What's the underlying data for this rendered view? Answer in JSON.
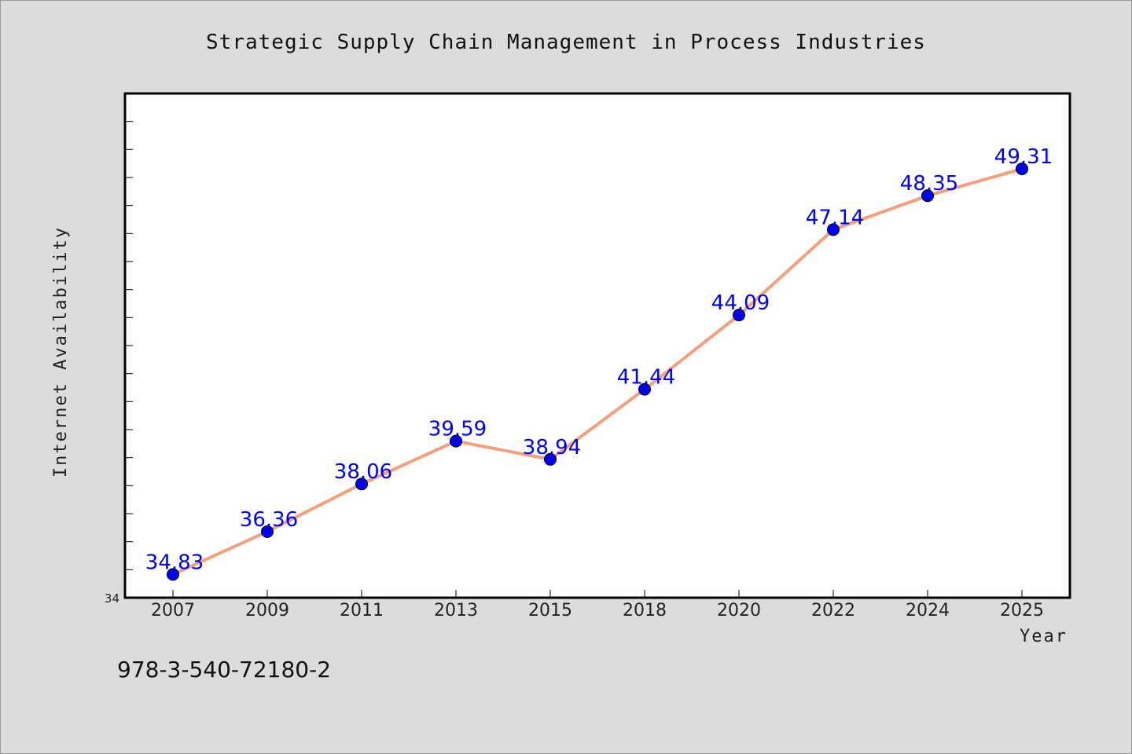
{
  "chart_data": {
    "type": "line",
    "title": "Strategic Supply Chain Management in Process Industries",
    "xlabel": "Year",
    "ylabel": "Internet Availability",
    "categories": [
      "2007",
      "2009",
      "2011",
      "2013",
      "2015",
      "2018",
      "2020",
      "2022",
      "2024",
      "2025"
    ],
    "series": [
      {
        "values": [
          34.83,
          36.36,
          38.06,
          39.59,
          38.94,
          41.44,
          44.09,
          47.14,
          48.35,
          49.31
        ]
      }
    ],
    "ylim": [
      34,
      52
    ],
    "ymin_label": "34",
    "grid": false,
    "line_color": "#f4a07c",
    "marker_color": "#0000ee",
    "label_color": "#0000ee"
  },
  "footnote": "978-3-540-72180-2"
}
